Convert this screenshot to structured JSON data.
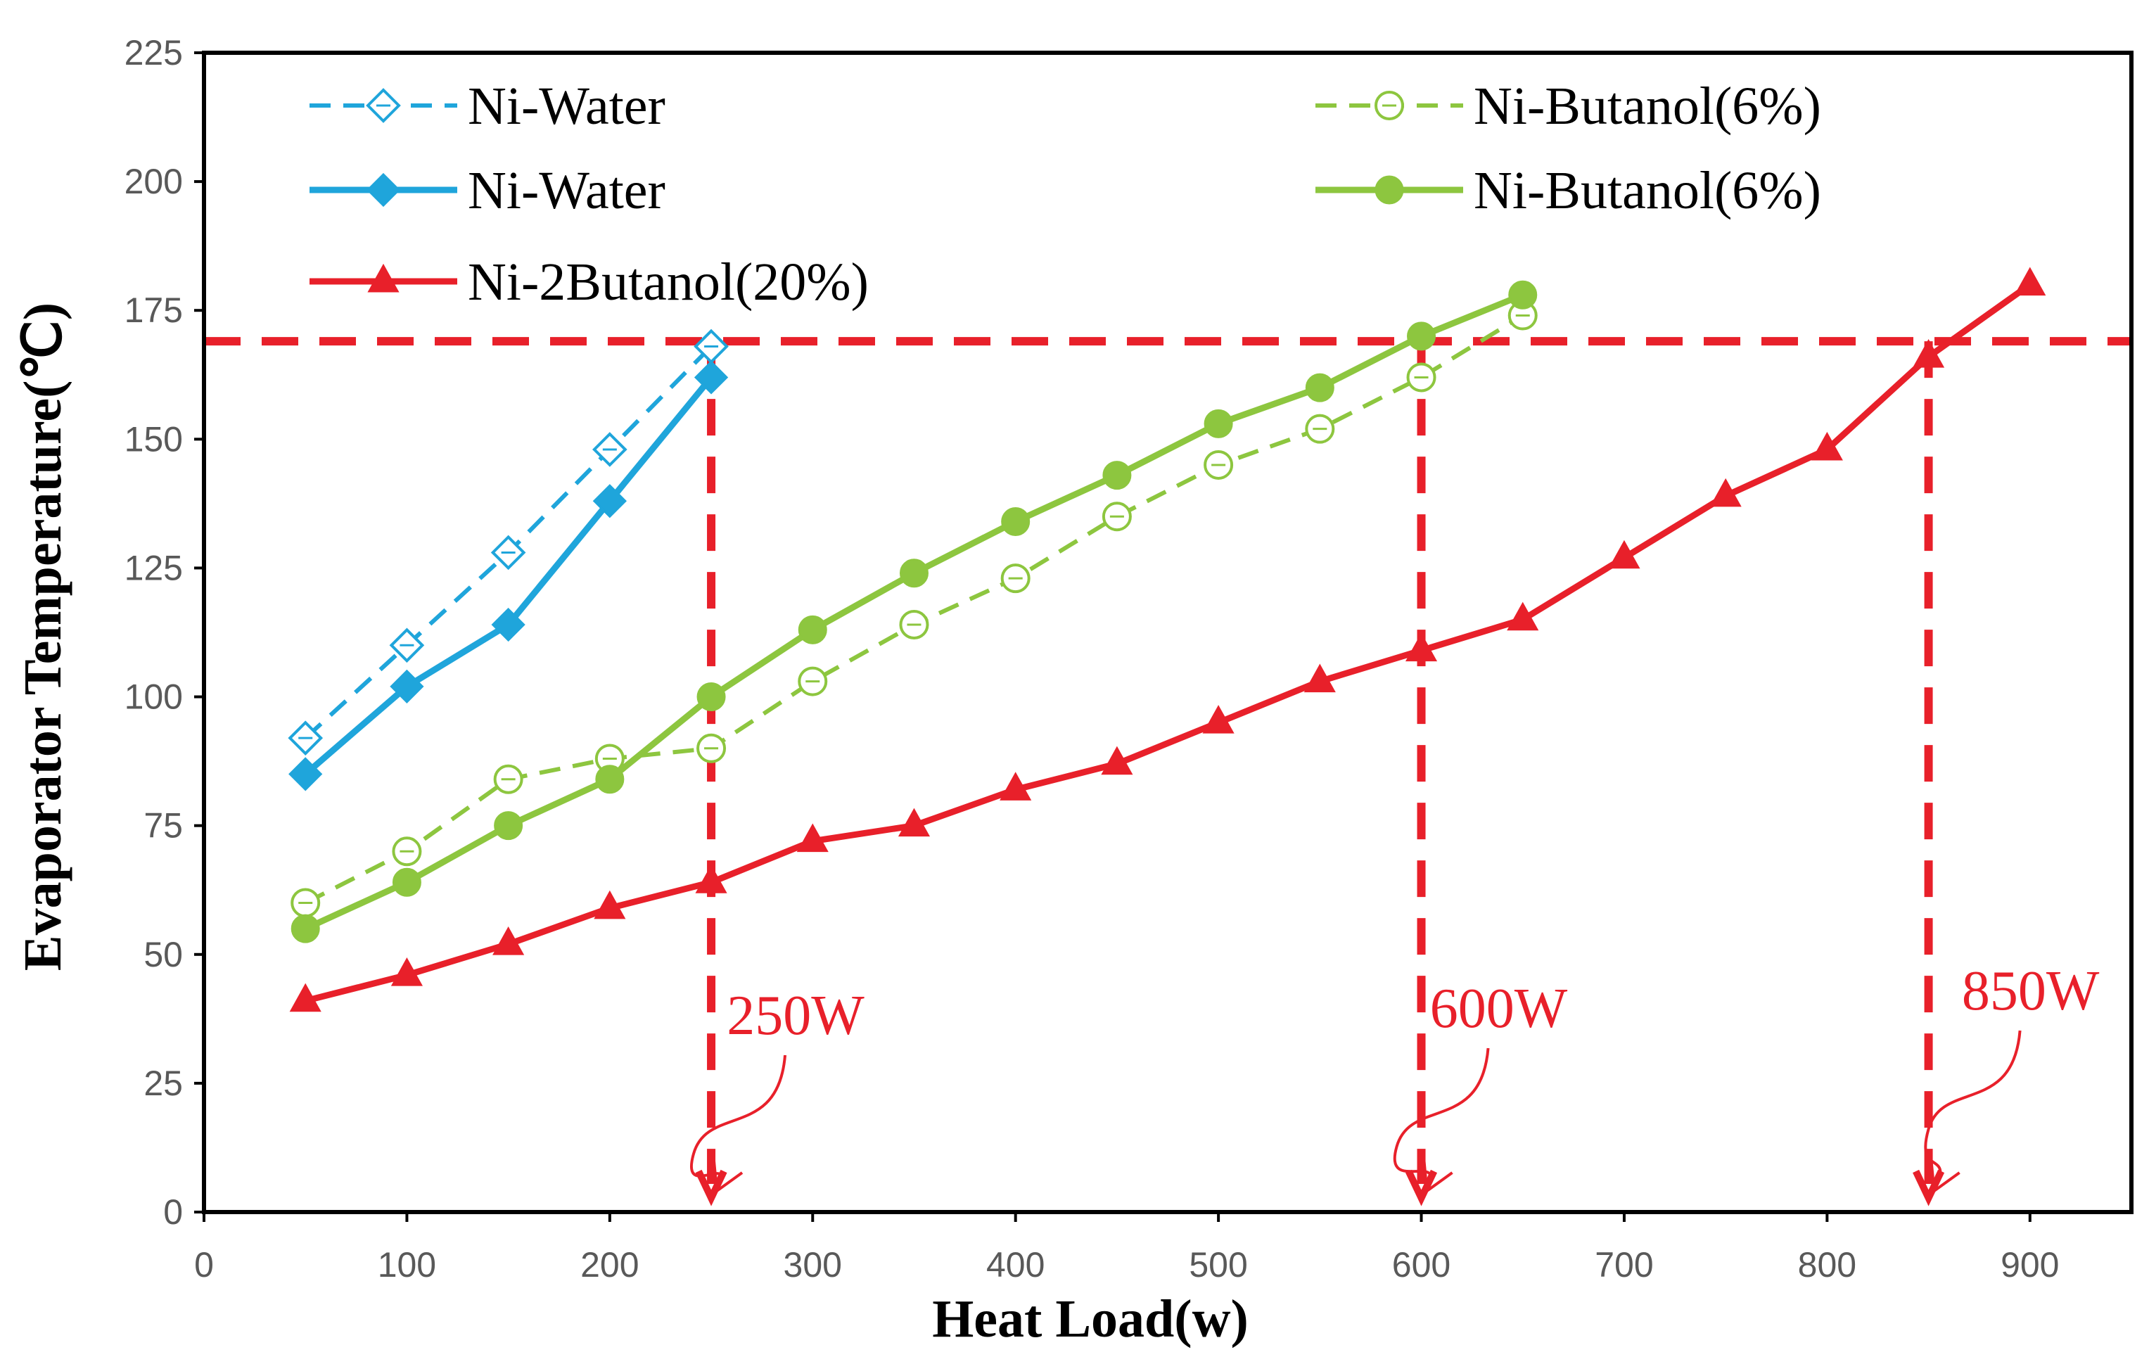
{
  "chart_data": {
    "type": "line",
    "xlabel": "Heat Load(w)",
    "ylabel": "Evaporator Temperature(℃)",
    "xlim": [
      0,
      950
    ],
    "ylim": [
      0,
      225
    ],
    "xticks": [
      0,
      100,
      200,
      300,
      400,
      500,
      600,
      700,
      800,
      900
    ],
    "yticks": [
      0,
      25,
      50,
      75,
      100,
      125,
      150,
      175,
      200,
      225
    ],
    "grid": false,
    "legend_position": "top",
    "series": [
      {
        "name": "Ni-Water",
        "style": "dashed",
        "marker": "diamond-open",
        "color": "#1FA5DB",
        "x": [
          50,
          100,
          150,
          200,
          250
        ],
        "y": [
          92,
          110,
          128,
          148,
          168
        ]
      },
      {
        "name": "Ni-Water",
        "style": "solid",
        "marker": "diamond-filled",
        "color": "#1FA5DB",
        "x": [
          50,
          100,
          150,
          200,
          250
        ],
        "y": [
          85,
          102,
          114,
          138,
          162
        ]
      },
      {
        "name": "Ni-2Butanol(20%)",
        "style": "solid",
        "marker": "triangle-filled",
        "color": "#E8202A",
        "x": [
          50,
          100,
          150,
          200,
          250,
          300,
          350,
          400,
          450,
          500,
          550,
          600,
          650,
          700,
          750,
          800,
          850,
          900
        ],
        "y": [
          41,
          46,
          52,
          59,
          64,
          72,
          75,
          82,
          87,
          95,
          103,
          109,
          115,
          127,
          139,
          148,
          166,
          180
        ]
      },
      {
        "name": "Ni-Butanol(6%)",
        "style": "dashed",
        "marker": "circle-open",
        "color": "#8DC63F",
        "x": [
          50,
          100,
          150,
          200,
          250,
          300,
          350,
          400,
          450,
          500,
          550,
          600,
          650
        ],
        "y": [
          60,
          70,
          84,
          88,
          90,
          103,
          114,
          123,
          135,
          145,
          152,
          162,
          174
        ]
      },
      {
        "name": "Ni-Butanol(6%)",
        "style": "solid",
        "marker": "circle-filled",
        "color": "#8DC63F",
        "x": [
          50,
          100,
          150,
          200,
          250,
          300,
          350,
          400,
          450,
          500,
          550,
          600,
          650
        ],
        "y": [
          55,
          64,
          75,
          84,
          100,
          113,
          124,
          134,
          143,
          153,
          160,
          170,
          178
        ]
      }
    ],
    "reference_lines": {
      "color": "#E8202A",
      "horizontal_y": 169,
      "vertical_x": [
        250,
        600,
        850
      ]
    },
    "annotations": [
      {
        "text": "250W",
        "x": 250
      },
      {
        "text": "600W",
        "x": 600
      },
      {
        "text": "850W",
        "x": 850
      }
    ]
  }
}
